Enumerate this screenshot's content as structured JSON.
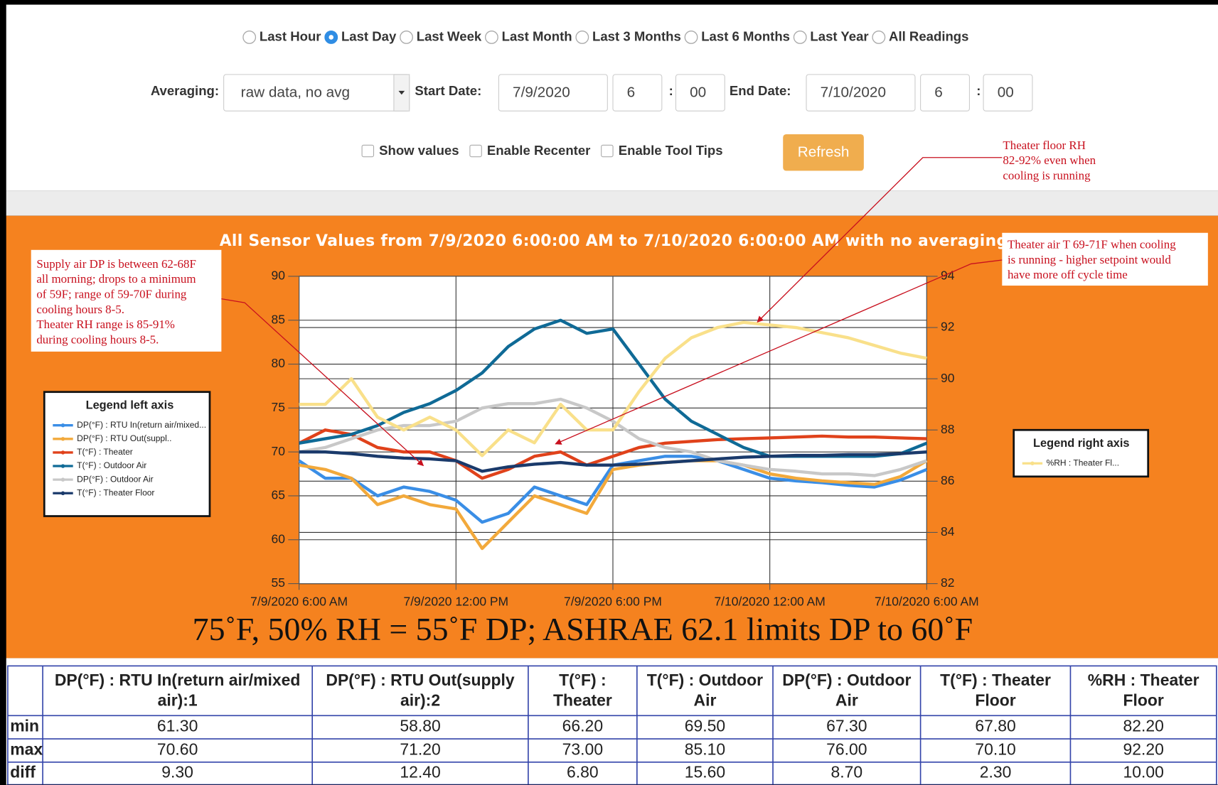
{
  "controls": {
    "ranges": [
      "Last Hour",
      "Last Day",
      "Last Week",
      "Last Month",
      "Last 3 Months",
      "Last 6 Months",
      "Last Year",
      "All Readings"
    ],
    "selected_range": 1,
    "averaging_label": "Averaging:",
    "averaging_value": "raw data, no avg",
    "start_label": "Start Date:",
    "start_date": "7/9/2020",
    "start_hour": "6",
    "start_minute": "00",
    "end_label": "End Date:",
    "end_date": "7/10/2020",
    "end_hour": "6",
    "end_minute": "00",
    "time_separator": ":",
    "checkboxes": [
      "Show values",
      "Enable Recenter",
      "Enable Tool Tips"
    ],
    "refresh": "Refresh"
  },
  "annotations": [
    {
      "lines": [
        "Theater floor RH",
        "82-92% even when",
        "cooling is running"
      ]
    },
    {
      "lines": [
        "Supply air DP is between 62-68F",
        "all morning; drops to a minimum",
        "of 59F; range of 59-70F during",
        "cooling hours 8-5.",
        "Theater RH range is 85-91%",
        "during cooling hours 8-5."
      ]
    },
    {
      "lines": [
        "Theater air T 69-71F when cooling",
        "is running - higher setpoint would",
        "have more off cycle time"
      ]
    }
  ],
  "caption": "75˚F, 50% RH = 55˚F DP; ASHRAE 62.1 limits DP to 60˚F",
  "chart_data": {
    "type": "line",
    "title": "All Sensor Values from 7/9/2020 6:00:00 AM to 7/10/2020 6:00:00 AM with no averaging",
    "x": [
      0,
      1,
      2,
      3,
      4,
      5,
      6,
      7,
      8,
      9,
      10,
      11,
      12,
      13,
      14,
      15,
      16,
      17,
      18,
      19,
      20,
      21,
      22,
      23,
      24
    ],
    "xlim": [
      0,
      24
    ],
    "xticks": [
      {
        "value": 0,
        "label": "7/9/2020 6:00 AM"
      },
      {
        "value": 6,
        "label": "7/9/2020 12:00 PM"
      },
      {
        "value": 12,
        "label": "7/9/2020 6:00 PM"
      },
      {
        "value": 18,
        "label": "7/10/2020 12:00 AM"
      },
      {
        "value": 24,
        "label": "7/10/2020 6:00 AM"
      }
    ],
    "ylim": [
      55,
      90
    ],
    "yticks": [
      55,
      60,
      65,
      70,
      75,
      80,
      85,
      90
    ],
    "y2lim": [
      82,
      94
    ],
    "y2ticks": [
      82,
      84,
      86,
      88,
      90,
      92,
      94
    ],
    "grid": true,
    "legend_left_title": "Legend left axis",
    "legend_right_title": "Legend right axis",
    "series": [
      {
        "name": "DP(°F) : RTU In(return air/mixed...",
        "color": "#3a8ee6",
        "values": [
          69,
          67,
          67,
          65,
          66,
          65.5,
          64.5,
          62,
          63,
          66,
          65,
          64,
          68.5,
          69,
          69.5,
          69.5,
          69,
          68,
          67,
          66.7,
          66.5,
          66.2,
          66,
          66.8,
          68
        ]
      },
      {
        "name": "DP(°F) : RTU Out(suppl..",
        "color": "#f2a93b",
        "values": [
          68.5,
          68,
          67,
          64,
          65,
          64,
          63.5,
          59,
          62,
          65,
          64,
          63,
          68,
          68.5,
          68.8,
          69,
          69,
          68.5,
          67.5,
          67,
          66.7,
          66.5,
          66.3,
          67.2,
          69
        ]
      },
      {
        "name": "T(°F) : Theater",
        "color": "#e0421b",
        "values": [
          71,
          72.5,
          72,
          70.5,
          70,
          70,
          69,
          67,
          68,
          69.5,
          70,
          68.5,
          69.5,
          70.5,
          71,
          71.2,
          71.4,
          71.5,
          71.6,
          71.7,
          71.8,
          71.7,
          71.7,
          71.6,
          71.5
        ]
      },
      {
        "name": "T(°F) : Outdoor Air",
        "color": "#0f6a96",
        "values": [
          71,
          71.5,
          72,
          73,
          74.5,
          75.5,
          77,
          79,
          82,
          84,
          85,
          83.5,
          84,
          80,
          76,
          73.5,
          72,
          70.5,
          69.5,
          69.5,
          69.5,
          69.5,
          69.5,
          69.8,
          71
        ]
      },
      {
        "name": "DP(°F) : Outdoor Air",
        "color": "#c8c8c8",
        "values": [
          70,
          70.5,
          71.5,
          72.5,
          73,
          73,
          73.5,
          75,
          75.5,
          75.5,
          76,
          75,
          73.5,
          71.5,
          70.5,
          70,
          69,
          68.5,
          68,
          67.8,
          67.5,
          67.5,
          67.3,
          68,
          69
        ]
      },
      {
        "name": "T(°F) : Theater Floor",
        "color": "#1a3a6b",
        "values": [
          70,
          70,
          69.8,
          69.5,
          69.3,
          69.2,
          69,
          67.8,
          68.3,
          68.6,
          68.8,
          68.5,
          68.5,
          68.6,
          68.8,
          69,
          69.2,
          69.4,
          69.5,
          69.6,
          69.6,
          69.7,
          69.7,
          69.8,
          70
        ]
      },
      {
        "name": "%RH : Theater Fl...",
        "color": "#f9e08a",
        "axis": "y2",
        "values": [
          89,
          89,
          90,
          88.5,
          88,
          88.5,
          88,
          87,
          88,
          87.5,
          89,
          88,
          88,
          89.5,
          90.8,
          91.6,
          92,
          92.2,
          92.1,
          92,
          91.8,
          91.6,
          91.3,
          91,
          90.8
        ]
      }
    ]
  },
  "table": {
    "headers": [
      "DP(°F) : RTU In(return air/mixed air):1",
      "DP(°F) : RTU Out(supply air):2",
      "T(°F) : Theater",
      "T(°F) : Outdoor Air",
      "DP(°F) : Outdoor Air",
      "T(°F) : Theater Floor",
      "%RH : Theater Floor"
    ],
    "rows": [
      [
        "min",
        "61.30",
        "58.80",
        "66.20",
        "69.50",
        "67.30",
        "67.80",
        "82.20"
      ],
      [
        "max",
        "70.60",
        "71.20",
        "73.00",
        "85.10",
        "76.00",
        "70.10",
        "92.20"
      ],
      [
        "diff",
        "9.30",
        "12.40",
        "6.80",
        "15.60",
        "8.70",
        "2.30",
        "10.00"
      ]
    ]
  }
}
